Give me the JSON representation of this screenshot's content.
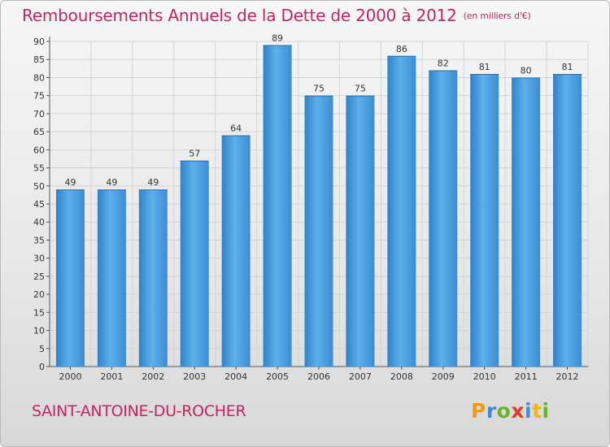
{
  "title": "Remboursements Annuels de la Dette de 2000 à 2012",
  "unit": "(en milliers d'€)",
  "town": "SAINT-ANTOINE-DU-ROCHER",
  "logo": [
    "P",
    "r",
    "o",
    "x",
    "i",
    "t",
    "i"
  ],
  "colors": {
    "bar": "#3e93d8",
    "bar_light": "#5eb0ea",
    "bar_dark": "#2a78bd",
    "title": "#c5245f",
    "grid": "#d4d4d4"
  },
  "chart_data": {
    "type": "bar",
    "categories": [
      "2000",
      "2001",
      "2002",
      "2003",
      "2004",
      "2005",
      "2006",
      "2007",
      "2008",
      "2009",
      "2010",
      "2011",
      "2012"
    ],
    "values": [
      49,
      49,
      49,
      57,
      64,
      89,
      75,
      75,
      86,
      82,
      81,
      80,
      81
    ],
    "ylim": [
      0,
      90
    ],
    "ytick_step": 5,
    "grid": true,
    "data_labels": true
  }
}
